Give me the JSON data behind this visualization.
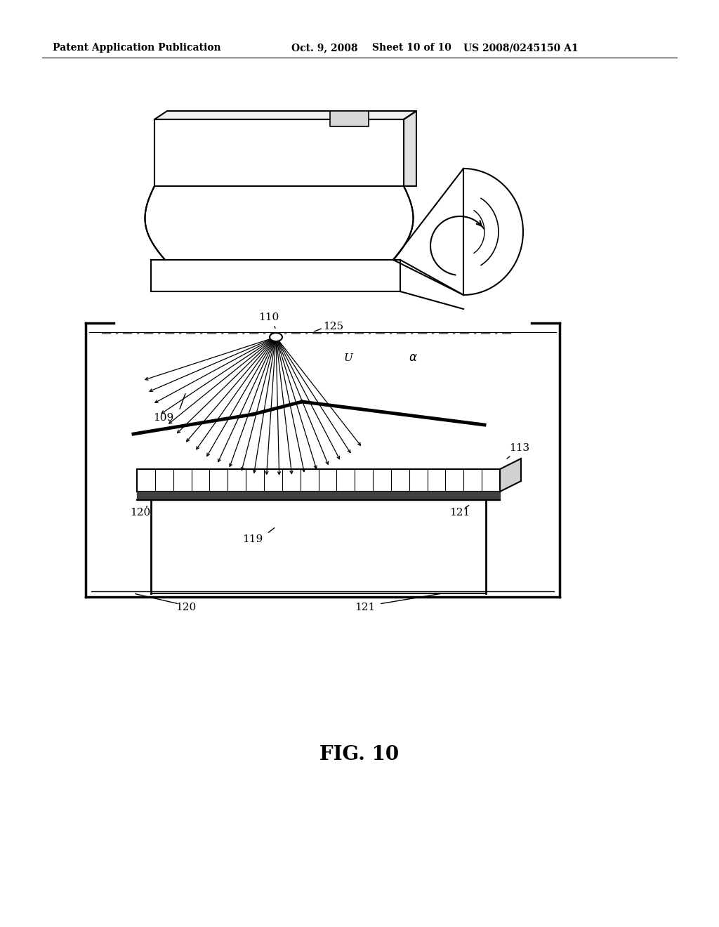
{
  "header_left": "Patent Application Publication",
  "header_mid": "Oct. 9, 2008   Sheet 10 of 10",
  "header_right": "US 2008/0245150 A1",
  "figure_label": "FIG. 10",
  "background_color": "#ffffff",
  "line_color": "#000000"
}
